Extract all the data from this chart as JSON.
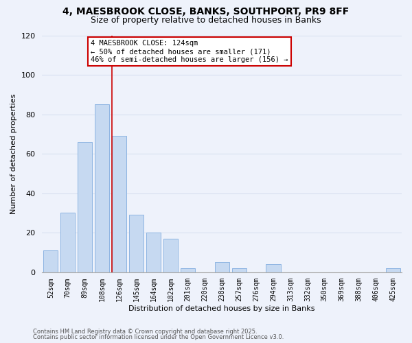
{
  "title": "4, MAESBROOK CLOSE, BANKS, SOUTHPORT, PR9 8FF",
  "subtitle": "Size of property relative to detached houses in Banks",
  "bar_labels": [
    "52sqm",
    "70sqm",
    "89sqm",
    "108sqm",
    "126sqm",
    "145sqm",
    "164sqm",
    "182sqm",
    "201sqm",
    "220sqm",
    "238sqm",
    "257sqm",
    "276sqm",
    "294sqm",
    "313sqm",
    "332sqm",
    "350sqm",
    "369sqm",
    "388sqm",
    "406sqm",
    "425sqm"
  ],
  "bar_values": [
    11,
    30,
    66,
    85,
    69,
    29,
    20,
    17,
    2,
    0,
    5,
    2,
    0,
    4,
    0,
    0,
    0,
    0,
    0,
    0,
    2
  ],
  "bar_color": "#c6d9f1",
  "bar_edge_color": "#8db4e2",
  "vline_color": "#cc0000",
  "annotation_title": "4 MAESBROOK CLOSE: 124sqm",
  "annotation_line1": "← 50% of detached houses are smaller (171)",
  "annotation_line2": "46% of semi-detached houses are larger (156) →",
  "xlabel": "Distribution of detached houses by size in Banks",
  "ylabel": "Number of detached properties",
  "ylim": [
    0,
    120
  ],
  "yticks": [
    0,
    20,
    40,
    60,
    80,
    100,
    120
  ],
  "footer1": "Contains HM Land Registry data © Crown copyright and database right 2025.",
  "footer2": "Contains public sector information licensed under the Open Government Licence v3.0.",
  "bg_color": "#eef2fb",
  "grid_color": "#d8e0f0",
  "title_fontsize": 10,
  "subtitle_fontsize": 9,
  "annotation_box_color": "#ffffff",
  "annotation_box_edge": "#cc0000",
  "annotation_fontsize": 7.5,
  "axis_label_fontsize": 8,
  "tick_fontsize": 7,
  "footer_fontsize": 6
}
